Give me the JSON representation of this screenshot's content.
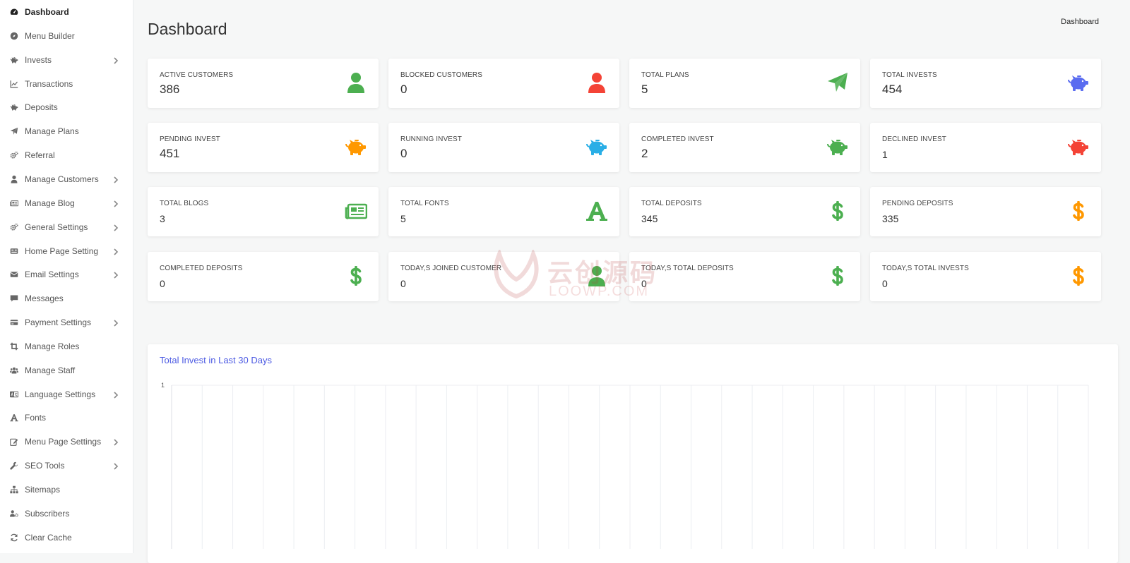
{
  "sidebar": {
    "items": [
      {
        "label": "Dashboard",
        "icon": "dashboard-icon",
        "active": true,
        "submenu": false
      },
      {
        "label": "Menu Builder",
        "icon": "compass-icon",
        "submenu": false
      },
      {
        "label": "Invests",
        "icon": "piggy-bank-icon",
        "submenu": true
      },
      {
        "label": "Transactions",
        "icon": "line-chart-icon",
        "submenu": false
      },
      {
        "label": "Deposits",
        "icon": "piggy-bank-icon",
        "submenu": false
      },
      {
        "label": "Manage Plans",
        "icon": "paper-plane-icon",
        "submenu": false
      },
      {
        "label": "Referral",
        "icon": "cogs-icon",
        "submenu": false
      },
      {
        "label": "Manage Customers",
        "icon": "user-icon",
        "submenu": true
      },
      {
        "label": "Manage Blog",
        "icon": "newspaper-icon",
        "submenu": true
      },
      {
        "label": "General Settings",
        "icon": "cogs-icon",
        "submenu": true
      },
      {
        "label": "Home Page Setting",
        "icon": "layout-icon",
        "submenu": true
      },
      {
        "label": "Email Settings",
        "icon": "envelope-icon",
        "submenu": true
      },
      {
        "label": "Messages",
        "icon": "comment-icon",
        "submenu": false
      },
      {
        "label": "Payment Settings",
        "icon": "credit-card-icon",
        "submenu": true
      },
      {
        "label": "Manage Roles",
        "icon": "crop-icon",
        "submenu": false
      },
      {
        "label": "Manage Staff",
        "icon": "users-icon",
        "submenu": false
      },
      {
        "label": "Language Settings",
        "icon": "language-icon",
        "submenu": true
      },
      {
        "label": "Fonts",
        "icon": "font-icon",
        "submenu": false
      },
      {
        "label": "Menu Page Settings",
        "icon": "edit-icon",
        "submenu": true
      },
      {
        "label": "SEO Tools",
        "icon": "wrench-icon",
        "submenu": true
      },
      {
        "label": "Sitemaps",
        "icon": "sitemap-icon",
        "submenu": false
      },
      {
        "label": "Subscribers",
        "icon": "users-cog-icon",
        "submenu": false
      },
      {
        "label": "Clear Cache",
        "icon": "refresh-icon",
        "submenu": false
      }
    ]
  },
  "header": {
    "title": "Dashboard",
    "breadcrumb": "Dashboard"
  },
  "cards": [
    {
      "label": "ACTIVE CUSTOMERS",
      "value": "386",
      "icon": "user-icon",
      "color": "#4caf50"
    },
    {
      "label": "BLOCKED CUSTOMERS",
      "value": "0",
      "icon": "user-icon",
      "color": "#f44336"
    },
    {
      "label": "TOTAL PLANS",
      "value": "5",
      "icon": "paper-plane-icon",
      "color": "#4caf50"
    },
    {
      "label": "TOTAL INVESTS",
      "value": "454",
      "icon": "piggy-bank-icon",
      "color": "#5a6cf0"
    },
    {
      "label": "PENDING INVEST",
      "value": "451",
      "icon": "piggy-bank-icon",
      "color": "#ff9800"
    },
    {
      "label": "RUNNING INVEST",
      "value": "0",
      "icon": "piggy-bank-icon",
      "color": "#29aee6"
    },
    {
      "label": "COMPLETED INVEST",
      "value": "2",
      "icon": "piggy-bank-icon",
      "color": "#4caf50"
    },
    {
      "label": "DECLINED INVEST",
      "value": "1",
      "icon": "piggy-bank-icon",
      "color": "#f44336"
    },
    {
      "label": "TOTAL BLOGS",
      "value": "3",
      "icon": "newspaper-icon",
      "color": "#4caf50"
    },
    {
      "label": "TOTAL FONTS",
      "value": "5",
      "icon": "font-icon",
      "color": "#4caf50"
    },
    {
      "label": "TOTAL DEPOSITS",
      "value": "345",
      "icon": "dollar-icon",
      "color": "#4caf50"
    },
    {
      "label": "PENDING DEPOSITS",
      "value": "335",
      "icon": "dollar-icon",
      "color": "#ff9800"
    },
    {
      "label": "COMPLETED DEPOSITS",
      "value": "0",
      "icon": "dollar-icon",
      "color": "#4caf50"
    },
    {
      "label": "TODAY,S JOINED CUSTOMER",
      "value": "0",
      "icon": "user-icon",
      "color": "#4caf50"
    },
    {
      "label": "TODAY,S TOTAL DEPOSITS",
      "value": "0",
      "icon": "dollar-icon",
      "color": "#4caf50"
    },
    {
      "label": "TODAY,S TOTAL INVESTS",
      "value": "0",
      "icon": "dollar-icon",
      "color": "#ff9800"
    }
  ],
  "chart": {
    "title": "Total Invest in Last 30 Days",
    "y_tick": "1"
  },
  "chart_data": {
    "type": "line",
    "title": "Total Invest in Last 30 Days",
    "xlabel": "",
    "ylabel": "",
    "yticks": [
      "1"
    ],
    "ylim_max": 1,
    "x_points": 30,
    "grid": true,
    "series": []
  },
  "watermark": {
    "line1": "云创源码",
    "line2": "LOOWP.COM"
  }
}
